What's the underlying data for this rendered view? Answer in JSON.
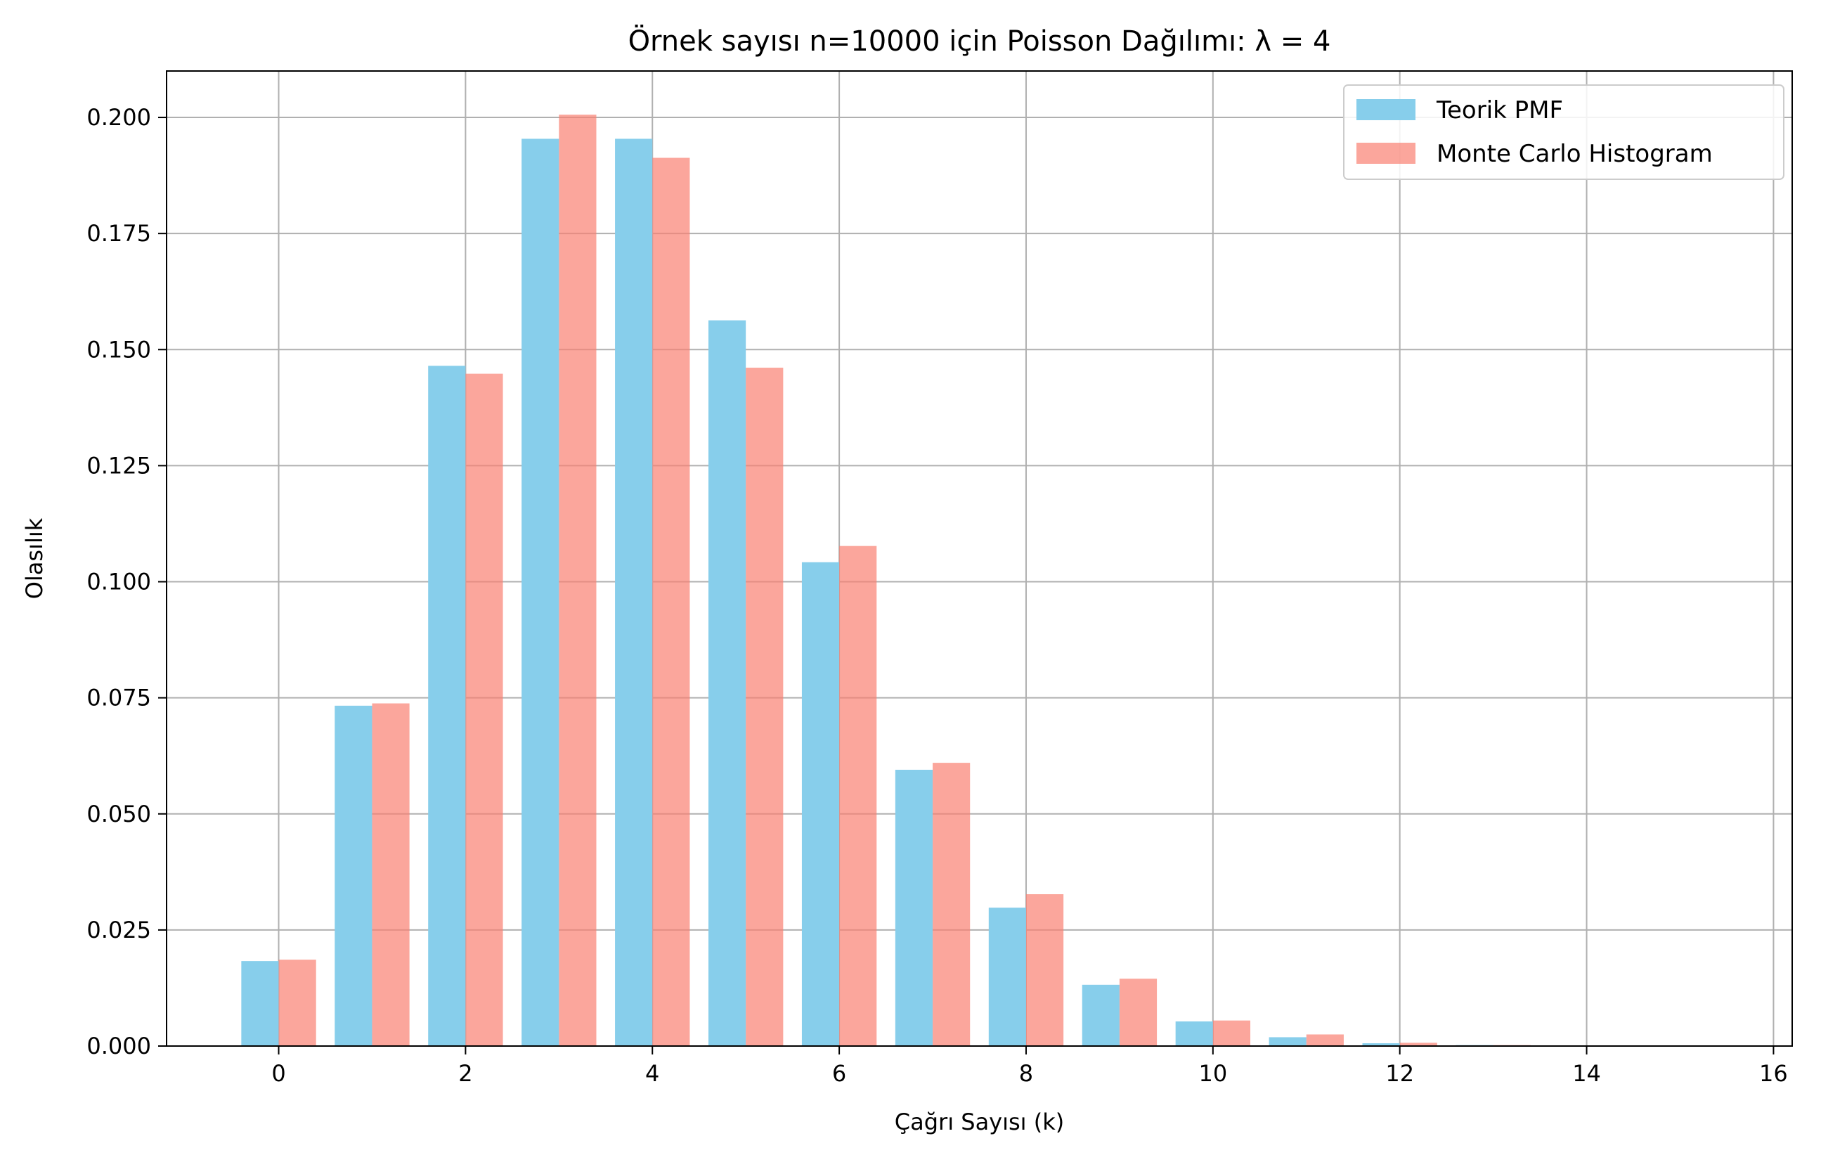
{
  "chart_data": {
    "type": "bar",
    "title": "Örnek sayısı n=10000 için Poisson Dağılımı: λ = 4",
    "xlabel": "Çağrı Sayısı (k)",
    "ylabel": "Olasılık",
    "x": [
      0,
      1,
      2,
      3,
      4,
      5,
      6,
      7,
      8,
      9,
      10,
      11,
      12,
      13,
      14,
      15
    ],
    "series": [
      {
        "name": "Teorik PMF",
        "color": "#87CEEB",
        "values": [
          0.0183,
          0.0733,
          0.1465,
          0.1954,
          0.1954,
          0.1563,
          0.1042,
          0.0595,
          0.0298,
          0.0132,
          0.0053,
          0.0019,
          0.0006,
          0.0002,
          0.0001,
          2e-05
        ]
      },
      {
        "name": "Monte Carlo Histogram",
        "color": "#FA8072",
        "values": [
          0.0186,
          0.0738,
          0.1448,
          0.2006,
          0.1913,
          0.1461,
          0.1077,
          0.061,
          0.0327,
          0.0145,
          0.0055,
          0.0025,
          0.0007,
          0.0002,
          0.0001,
          0.0
        ]
      }
    ],
    "xlim": [
      -1.2,
      16.2
    ],
    "ylim": [
      0,
      0.21
    ],
    "xticks": [
      0,
      2,
      4,
      6,
      8,
      10,
      12,
      14,
      16
    ],
    "xtick_labels": [
      "0",
      "2",
      "4",
      "6",
      "8",
      "10",
      "12",
      "14",
      "16"
    ],
    "yticks": [
      0,
      0.025,
      0.05,
      0.075,
      0.1,
      0.125,
      0.15,
      0.175,
      0.2
    ],
    "ytick_labels": [
      "0.000",
      "0.025",
      "0.050",
      "0.075",
      "0.100",
      "0.125",
      "0.150",
      "0.175",
      "0.200"
    ],
    "grid": true,
    "legend_position": "top-right"
  }
}
